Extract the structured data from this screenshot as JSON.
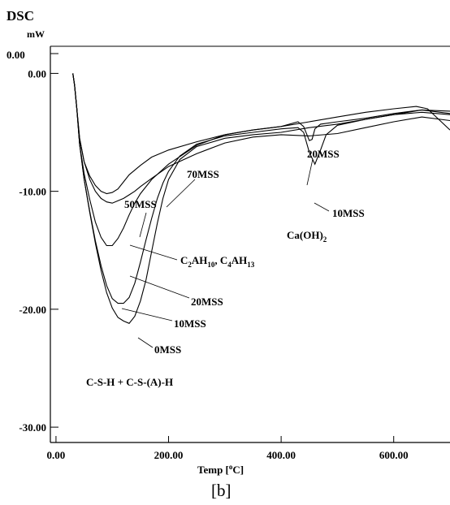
{
  "chart_data": {
    "type": "line",
    "title": "DSC",
    "ylabel": "mW",
    "xlabel_main": "Temp [",
    "xlabel_sup": "o",
    "xlabel_end": "C]",
    "panel_label": "[b]",
    "top_tick_label": "0.00",
    "xlim": [
      -10,
      700
    ],
    "ylim": [
      -31.3,
      2.3
    ],
    "x_ticks": [
      {
        "value": 0,
        "label": "0.00"
      },
      {
        "value": 200,
        "label": "200.00"
      },
      {
        "value": 400,
        "label": "400.00"
      },
      {
        "value": 600,
        "label": "600.00"
      }
    ],
    "y_ticks": [
      {
        "value": 0,
        "label": "0.00"
      },
      {
        "value": -10,
        "label": "-10.00"
      },
      {
        "value": -20,
        "label": "-20.00"
      },
      {
        "value": -30,
        "label": "-30.00"
      }
    ],
    "series": [
      {
        "name": "0MSS",
        "points": [
          [
            30,
            0
          ],
          [
            33,
            -1
          ],
          [
            37,
            -3
          ],
          [
            42,
            -6
          ],
          [
            50,
            -9
          ],
          [
            60,
            -11.8
          ],
          [
            70,
            -14.4
          ],
          [
            80,
            -16.7
          ],
          [
            90,
            -18.6
          ],
          [
            100,
            -19.9
          ],
          [
            110,
            -20.7
          ],
          [
            120,
            -21
          ],
          [
            130,
            -21.2
          ],
          [
            140,
            -20.6
          ],
          [
            150,
            -19.3
          ],
          [
            160,
            -17.5
          ],
          [
            170,
            -15.1
          ],
          [
            180,
            -12.7
          ],
          [
            190,
            -10.6
          ],
          [
            200,
            -9
          ],
          [
            220,
            -7.3
          ],
          [
            250,
            -6.2
          ],
          [
            300,
            -5.5
          ],
          [
            350,
            -5.2
          ],
          [
            400,
            -5
          ],
          [
            450,
            -4.6
          ],
          [
            500,
            -4.3
          ],
          [
            550,
            -3.9
          ],
          [
            600,
            -3.5
          ],
          [
            650,
            -3.3
          ],
          [
            700,
            -3.5
          ]
        ]
      },
      {
        "name": "10MSS",
        "points": [
          [
            30,
            0
          ],
          [
            33,
            -1
          ],
          [
            37,
            -3
          ],
          [
            42,
            -6
          ],
          [
            50,
            -9
          ],
          [
            60,
            -11.7
          ],
          [
            70,
            -14.2
          ],
          [
            80,
            -16.3
          ],
          [
            90,
            -18
          ],
          [
            100,
            -19.1
          ],
          [
            110,
            -19.5
          ],
          [
            120,
            -19.5
          ],
          [
            130,
            -19
          ],
          [
            140,
            -17.8
          ],
          [
            150,
            -16
          ],
          [
            160,
            -14.1
          ],
          [
            170,
            -12.3
          ],
          [
            180,
            -10.6
          ],
          [
            190,
            -9.3
          ],
          [
            200,
            -8.3
          ],
          [
            220,
            -7
          ],
          [
            250,
            -6
          ],
          [
            300,
            -5.3
          ],
          [
            350,
            -5
          ],
          [
            400,
            -4.7
          ],
          [
            430,
            -4.6
          ],
          [
            440,
            -5
          ],
          [
            450,
            -6.7
          ],
          [
            460,
            -7.7
          ],
          [
            470,
            -6.5
          ],
          [
            480,
            -5.2
          ],
          [
            500,
            -4.4
          ],
          [
            550,
            -3.9
          ],
          [
            600,
            -3.5
          ],
          [
            650,
            -3.1
          ],
          [
            700,
            -3.4
          ]
        ]
      },
      {
        "name": "20MSS",
        "points": [
          [
            30,
            0
          ],
          [
            33,
            -1
          ],
          [
            37,
            -3
          ],
          [
            42,
            -6
          ],
          [
            50,
            -8.5
          ],
          [
            60,
            -10.7
          ],
          [
            70,
            -12.6
          ],
          [
            80,
            -13.9
          ],
          [
            90,
            -14.6
          ],
          [
            100,
            -14.6
          ],
          [
            110,
            -14
          ],
          [
            120,
            -13.1
          ],
          [
            130,
            -12
          ],
          [
            140,
            -11
          ],
          [
            150,
            -10.2
          ],
          [
            170,
            -9
          ],
          [
            200,
            -7.7
          ],
          [
            250,
            -6.1
          ],
          [
            300,
            -5.2
          ],
          [
            350,
            -4.8
          ],
          [
            400,
            -4.5
          ],
          [
            430,
            -4.1
          ],
          [
            440,
            -4.5
          ],
          [
            450,
            -5.7
          ],
          [
            455,
            -5.6
          ],
          [
            460,
            -4.7
          ],
          [
            470,
            -4.3
          ],
          [
            500,
            -4.1
          ],
          [
            550,
            -3.8
          ],
          [
            600,
            -3.4
          ],
          [
            650,
            -3.1
          ],
          [
            700,
            -3.2
          ]
        ]
      },
      {
        "name": "50MSS",
        "points": [
          [
            30,
            0
          ],
          [
            33,
            -1
          ],
          [
            37,
            -3
          ],
          [
            42,
            -5.5
          ],
          [
            50,
            -7.5
          ],
          [
            60,
            -9
          ],
          [
            70,
            -10
          ],
          [
            80,
            -10.6
          ],
          [
            90,
            -10.9
          ],
          [
            100,
            -11
          ],
          [
            110,
            -10.8
          ],
          [
            120,
            -10.6
          ],
          [
            130,
            -10.3
          ],
          [
            140,
            -10
          ],
          [
            150,
            -9.6
          ],
          [
            170,
            -8.9
          ],
          [
            200,
            -7.9
          ],
          [
            250,
            -6.8
          ],
          [
            300,
            -5.9
          ],
          [
            350,
            -5.4
          ],
          [
            400,
            -5.2
          ],
          [
            450,
            -5.3
          ],
          [
            500,
            -5.1
          ],
          [
            550,
            -4.6
          ],
          [
            600,
            -4.1
          ],
          [
            650,
            -3.7
          ],
          [
            700,
            -4
          ]
        ]
      },
      {
        "name": "70MSS",
        "points": [
          [
            30,
            0
          ],
          [
            33,
            -1
          ],
          [
            37,
            -3
          ],
          [
            42,
            -5.5
          ],
          [
            50,
            -7.5
          ],
          [
            60,
            -8.7
          ],
          [
            70,
            -9.5
          ],
          [
            80,
            -10
          ],
          [
            90,
            -10.2
          ],
          [
            100,
            -10.1
          ],
          [
            110,
            -9.8
          ],
          [
            120,
            -9.2
          ],
          [
            130,
            -8.6
          ],
          [
            150,
            -7.8
          ],
          [
            170,
            -7.1
          ],
          [
            200,
            -6.5
          ],
          [
            250,
            -5.8
          ],
          [
            300,
            -5.2
          ],
          [
            350,
            -4.8
          ],
          [
            400,
            -4.5
          ],
          [
            450,
            -4.1
          ],
          [
            500,
            -3.7
          ],
          [
            550,
            -3.3
          ],
          [
            600,
            -3
          ],
          [
            640,
            -2.8
          ],
          [
            660,
            -3
          ],
          [
            700,
            -4.8
          ]
        ]
      }
    ],
    "annotations": {
      "s70": "70MSS",
      "s50": "50MSS",
      "s20_top": "20MSS",
      "s10_right": "10MSS",
      "caoh_main": "Ca(OH)",
      "caoh_sub": "2",
      "c2_main": "C",
      "c2_sub": "2",
      "ah10_main": "AH",
      "ah10_sub": "10",
      "sep": ", ",
      "c4_main": "C",
      "c4_sub": "4",
      "ah13_main": "AH",
      "ah13_sub": "13",
      "s20_mid": "20MSS",
      "s10_mid": "10MSS",
      "s0": "0MSS",
      "csh": "C-S-H + C-S-(A)-H"
    }
  }
}
